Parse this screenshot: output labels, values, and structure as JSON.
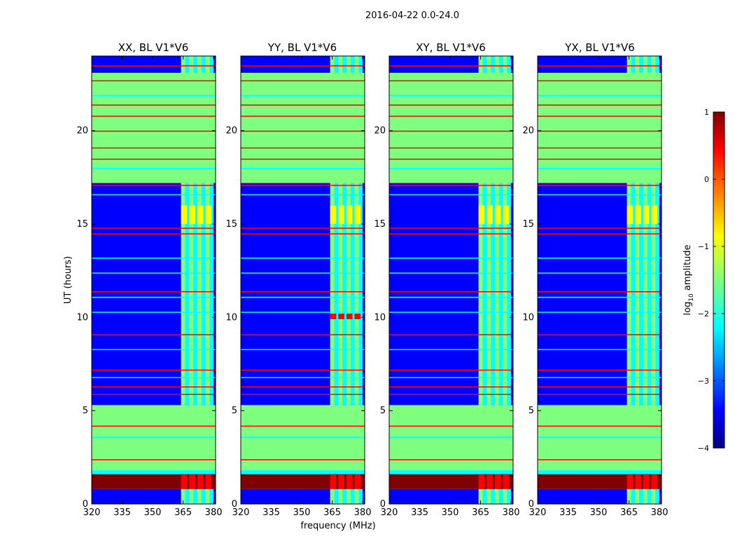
{
  "figure": {
    "suptitle": "2016-04-22 0.0-24.0"
  },
  "chart_data": [
    {
      "type": "heatmap",
      "title": "XX, BL V1*V6",
      "xlabel": "",
      "ylabel": "UT (hours)",
      "xlim": [
        320,
        381
      ],
      "ylim": [
        0,
        24
      ],
      "xticks": [
        320,
        335,
        350,
        365,
        380
      ],
      "yticks": [
        0,
        5,
        10,
        15,
        20
      ],
      "colormap": "jet",
      "color_label": "log10 amplitude",
      "high_band_mhz": [
        364,
        380
      ],
      "bright_hours": [
        0.8,
        1.6
      ]
    },
    {
      "type": "heatmap",
      "title": "YY, BL V1*V6",
      "xlabel": "frequency (MHz)",
      "ylabel": "",
      "xlim": [
        320,
        381
      ],
      "ylim": [
        0,
        24
      ],
      "xticks": [
        320,
        335,
        350,
        365,
        380
      ],
      "yticks": [
        0,
        5,
        10,
        15,
        20
      ],
      "colormap": "jet",
      "color_label": "log10 amplitude",
      "high_band_mhz": [
        364,
        380
      ],
      "bright_hours": [
        0.8,
        1.6,
        9.9,
        10.2
      ]
    },
    {
      "type": "heatmap",
      "title": "XY, BL V1*V6",
      "xlabel": "",
      "ylabel": "",
      "xlim": [
        320,
        381
      ],
      "ylim": [
        0,
        24
      ],
      "xticks": [
        320,
        335,
        350,
        365,
        380
      ],
      "yticks": [
        0,
        5,
        10,
        15,
        20
      ],
      "colormap": "jet",
      "color_label": "log10 amplitude",
      "high_band_mhz": [
        364,
        380
      ],
      "bright_hours": [
        0.8,
        1.6
      ]
    },
    {
      "type": "heatmap",
      "title": "YX, BL V1*V6",
      "xlabel": "",
      "ylabel": "",
      "xlim": [
        320,
        381
      ],
      "ylim": [
        0,
        24
      ],
      "xticks": [
        320,
        335,
        350,
        365,
        380
      ],
      "yticks": [
        0,
        5,
        10,
        15,
        20
      ],
      "colormap": "jet",
      "color_label": "log10 amplitude",
      "high_band_mhz": [
        364,
        380
      ],
      "bright_hours": [
        0.8,
        1.6
      ]
    }
  ],
  "colorbar": {
    "label_main": "log",
    "label_sub": "10",
    "label_rest": " amplitude",
    "min": -4,
    "max": 1,
    "tick_labels": [
      "−4",
      "−3",
      "−2",
      "−1",
      "0",
      "1"
    ],
    "tick_values": [
      -4,
      -3,
      -2,
      -1,
      0,
      1
    ]
  },
  "colors": {
    "jet_dark_blue": "#00007f",
    "jet_blue": "#0000ff",
    "jet_cyan": "#00ffff",
    "jet_green": "#7fff7f",
    "jet_yellow": "#ffff00",
    "jet_red": "#ff0000",
    "jet_dark_red": "#7f0000"
  }
}
